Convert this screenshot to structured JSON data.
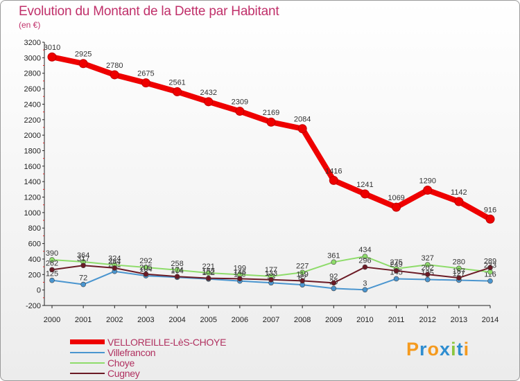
{
  "header": {
    "title": "Evolution du Montant de la Dette par Habitant",
    "subtitle": "(en €)"
  },
  "chart_data": {
    "type": "line",
    "title": "Evolution du Montant de la Dette par Habitant",
    "subtitle": "(en €)",
    "xlabel": "",
    "ylabel": "",
    "x": [
      "2000",
      "2001",
      "2002",
      "2003",
      "2004",
      "2005",
      "2006",
      "2007",
      "2008",
      "2009",
      "2010",
      "2011",
      "2012",
      "2013",
      "2014"
    ],
    "ylim": [
      -200,
      3200
    ],
    "yticks": [
      -200,
      0,
      200,
      400,
      600,
      800,
      1000,
      1200,
      1400,
      1600,
      1800,
      2000,
      2200,
      2400,
      2600,
      2800,
      3000,
      3200
    ],
    "grid": false,
    "legend_position": "bottom-left",
    "series": [
      {
        "name": "VELLOREILLE-LèS-CHOYE",
        "color": "#ee0000",
        "values": [
          3010,
          2925,
          2780,
          2675,
          2561,
          2432,
          2309,
          2169,
          2084,
          1416,
          1241,
          1069,
          1290,
          1142,
          916
        ]
      },
      {
        "name": "Villefrancon",
        "color": "#4a95cf",
        "values": [
          125,
          72,
          241,
          184,
          164,
          142,
          116,
          93,
          67,
          20,
          3,
          145,
          135,
          127,
          116
        ]
      },
      {
        "name": "Choye",
        "color": "#8edc6a",
        "values": [
          390,
          364,
          324,
          292,
          258,
          221,
          199,
          177,
          227,
          361,
          434,
          275,
          327,
          280,
          233
        ]
      },
      {
        "name": "Cugney",
        "color": "#6b1a25",
        "values": [
          262,
          317,
          284,
          205,
          174,
          152,
          146,
          133,
          119,
          92,
          296,
          249,
          202,
          157,
          289
        ]
      }
    ]
  },
  "legend": {
    "items": [
      "VELLOREILLE-LèS-CHOYE",
      "Villefrancon",
      "Choye",
      "Cugney"
    ]
  },
  "branding": {
    "logo_text": "Proxiti",
    "logo_colors": [
      "#f59a1e",
      "#2e8dd0",
      "#f59a1e",
      "#2e8dd0",
      "#8cc63f",
      "#2e8dd0",
      "#f59a1e"
    ]
  }
}
